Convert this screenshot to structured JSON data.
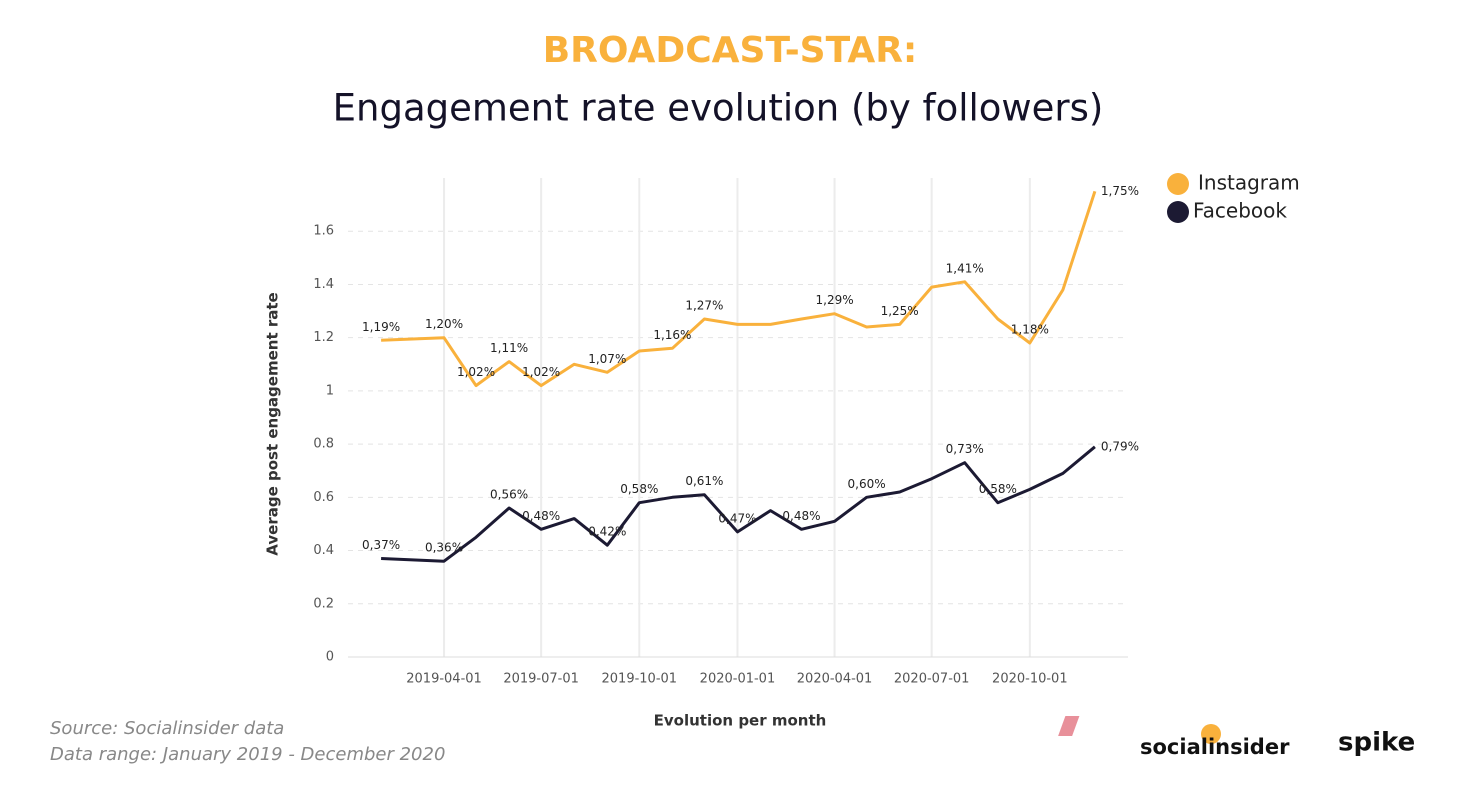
{
  "chart_data": {
    "type": "line",
    "title": "BROADCAST-STAR:",
    "subtitle": "Engagement rate evolution (by followers)",
    "xlabel": "Evolution per month",
    "ylabel": "Average post engagement rate",
    "x": [
      "2019-02-01",
      "2019-04-01",
      "2019-05-01",
      "2019-06-01",
      "2019-07-01",
      "2019-08-01",
      "2019-09-01",
      "2019-10-01",
      "2019-11-01",
      "2019-12-01",
      "2020-01-01",
      "2020-02-01",
      "2020-03-01",
      "2020-04-01",
      "2020-05-01",
      "2020-06-01",
      "2020-07-01",
      "2020-08-01",
      "2020-09-01",
      "2020-10-01",
      "2020-11-01",
      "2020-12-01"
    ],
    "series": [
      {
        "name": "Instagram",
        "color": "#f9b13c",
        "values": [
          1.19,
          1.2,
          1.02,
          1.11,
          1.02,
          1.1,
          1.07,
          1.15,
          1.16,
          1.27,
          1.25,
          1.25,
          1.27,
          1.29,
          1.24,
          1.25,
          1.39,
          1.41,
          1.27,
          1.18,
          1.38,
          1.75
        ],
        "value_labels": [
          "1,19%",
          "1,20%",
          "1,02%",
          "1,11%",
          "1,02%",
          null,
          "1,07%",
          null,
          "1,16%",
          "1,27%",
          null,
          null,
          null,
          "1,29%",
          null,
          "1,25%",
          null,
          "1,41%",
          null,
          "1,18%",
          null,
          "1,75%"
        ]
      },
      {
        "name": "Facebook",
        "color": "#1c1a33",
        "values": [
          0.37,
          0.36,
          0.45,
          0.56,
          0.48,
          0.52,
          0.42,
          0.58,
          0.6,
          0.61,
          0.47,
          0.55,
          0.48,
          0.51,
          0.6,
          0.62,
          0.67,
          0.73,
          0.58,
          0.63,
          0.69,
          0.79
        ],
        "value_labels": [
          "0,37%",
          "0,36%",
          null,
          "0,56%",
          "0,48%",
          null,
          "0,42%",
          "0,58%",
          null,
          "0,61%",
          "0,47%",
          null,
          "0,48%",
          null,
          "0,60%",
          null,
          null,
          "0,73%",
          "0,58%",
          null,
          null,
          "0,79%"
        ]
      }
    ],
    "xlim": [
      "2019-01-01",
      "2021-01-01"
    ],
    "xticks": [
      "2019-04-01",
      "2019-07-01",
      "2019-10-01",
      "2020-01-01",
      "2020-04-01",
      "2020-07-01",
      "2020-10-01"
    ],
    "ylim": [
      0,
      1.8
    ],
    "yticks": [
      0,
      0.2,
      0.4,
      0.6,
      0.8,
      1,
      1.2,
      1.4,
      1.6
    ],
    "grid": true,
    "legend": "top-right",
    "source": [
      "Source: Socialinsider data",
      "Data range: January 2019 - December 2020"
    ],
    "logos": [
      "socialinsider",
      "spike"
    ]
  }
}
